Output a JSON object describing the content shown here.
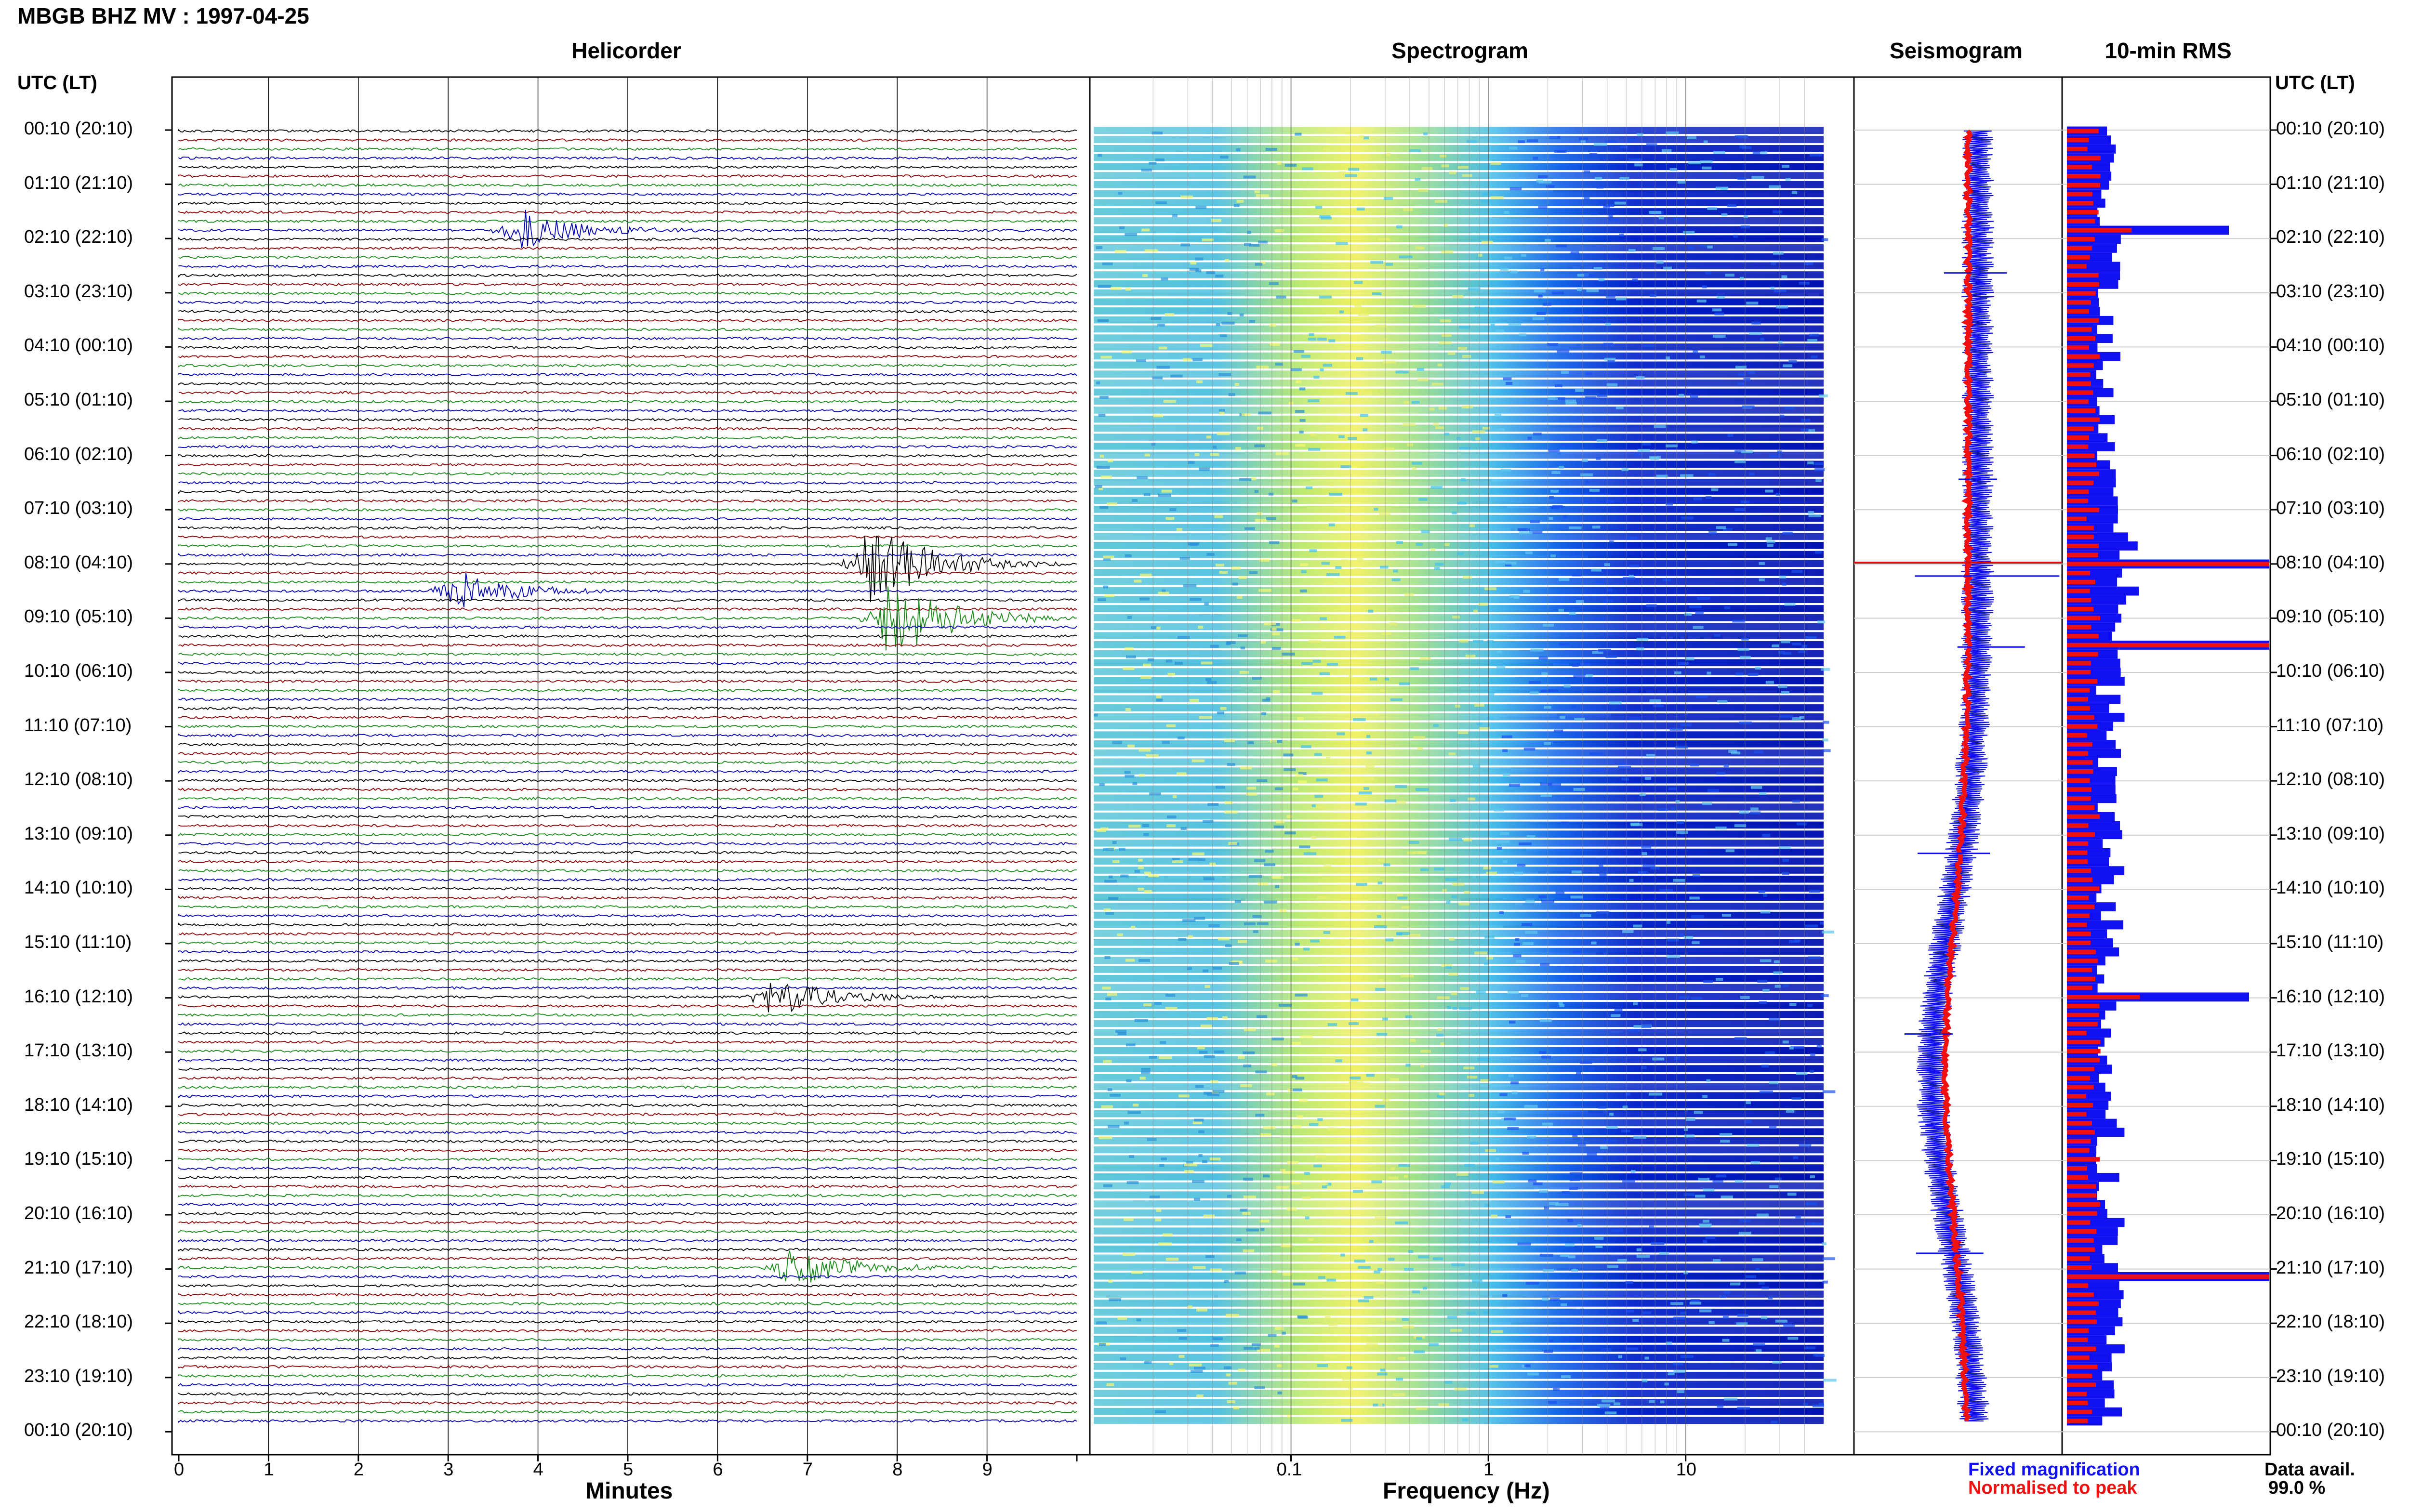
{
  "header": {
    "station_title": "MBGB BHZ MV : 1997-04-25"
  },
  "panels": {
    "helicorder_title": "Helicorder",
    "spectrogram_title": "Spectrogram",
    "seismogram_title": "Seismogram",
    "rms_title": "10-min RMS"
  },
  "time_axis": {
    "left_header": "UTC (LT)",
    "right_header": "UTC (LT)",
    "labels": [
      "00:10 (20:10)",
      "01:10 (21:10)",
      "02:10 (22:10)",
      "03:10 (23:10)",
      "04:10 (00:10)",
      "05:10 (01:10)",
      "06:10 (02:10)",
      "07:10 (03:10)",
      "08:10 (04:10)",
      "09:10 (05:10)",
      "10:10 (06:10)",
      "11:10 (07:10)",
      "12:10 (08:10)",
      "13:10 (09:10)",
      "14:10 (10:10)",
      "15:10 (11:10)",
      "16:10 (12:10)",
      "17:10 (13:10)",
      "18:10 (14:10)",
      "19:10 (15:10)",
      "20:10 (16:10)",
      "21:10 (17:10)",
      "22:10 (18:10)",
      "23:10 (19:10)",
      "00:10 (20:10)"
    ]
  },
  "helicorder_axis": {
    "title": "Minutes",
    "ticks": [
      "0",
      "1",
      "2",
      "3",
      "4",
      "5",
      "6",
      "7",
      "8",
      "9"
    ]
  },
  "spectrogram_axis": {
    "title": "Frequency (Hz)",
    "ticks": [
      "0.1",
      "1",
      "10"
    ]
  },
  "legend": {
    "fixed": "Fixed magnification",
    "normalised": "Normalised to peak",
    "fixed_color": "#1010f0",
    "normalised_color": "#f01010"
  },
  "data_availability": {
    "label": "Data avail.",
    "value": "99.0 %"
  },
  "colors": {
    "trace_cycle": [
      "#000000",
      "#8b0000",
      "#1a8a1a",
      "#0000b0"
    ],
    "spectrogram_low": "#f0f060",
    "spectrogram_mid": "#30c0e0",
    "spectrogram_high": "#0010c0"
  },
  "chart_data": [
    {
      "type": "line",
      "title": "Helicorder",
      "xlabel": "Minutes",
      "xlim": [
        0,
        10
      ],
      "row_interval_minutes": 10,
      "rows": 144,
      "row_start": "00:10",
      "events": [
        {
          "row_time": "08:10",
          "minute": 7.7,
          "amplitude": "large"
        },
        {
          "row_time": "09:10",
          "minute": 7.9,
          "amplitude": "large"
        },
        {
          "row_time": "08:40",
          "minute": 3.1,
          "amplitude": "medium"
        },
        {
          "row_time": "16:10",
          "minute": 6.6,
          "amplitude": "medium"
        },
        {
          "row_time": "21:10",
          "minute": 6.8,
          "amplitude": "medium"
        },
        {
          "row_time": "02:00",
          "minute": 3.8,
          "amplitude": "medium"
        }
      ]
    },
    {
      "type": "heatmap",
      "title": "Spectrogram",
      "xlabel": "Frequency (Hz)",
      "xscale": "log",
      "xlim": [
        0.01,
        50
      ],
      "x_ticks": [
        0.1,
        1,
        10
      ]
    },
    {
      "type": "line",
      "title": "Seismogram",
      "series": [
        {
          "name": "Fixed magnification"
        },
        {
          "name": "Normalised to peak"
        }
      ]
    },
    {
      "type": "bar",
      "title": "10-min RMS",
      "series": [
        {
          "name": "Fixed magnification"
        },
        {
          "name": "Normalised to peak"
        }
      ],
      "peaks": [
        {
          "row_time": "08:10",
          "relative": 1.0
        },
        {
          "row_time": "09:40",
          "relative": 1.0
        },
        {
          "row_time": "21:20",
          "relative": 1.0
        },
        {
          "row_time": "16:10",
          "relative": 0.9
        },
        {
          "row_time": "02:00",
          "relative": 0.8
        }
      ]
    }
  ]
}
